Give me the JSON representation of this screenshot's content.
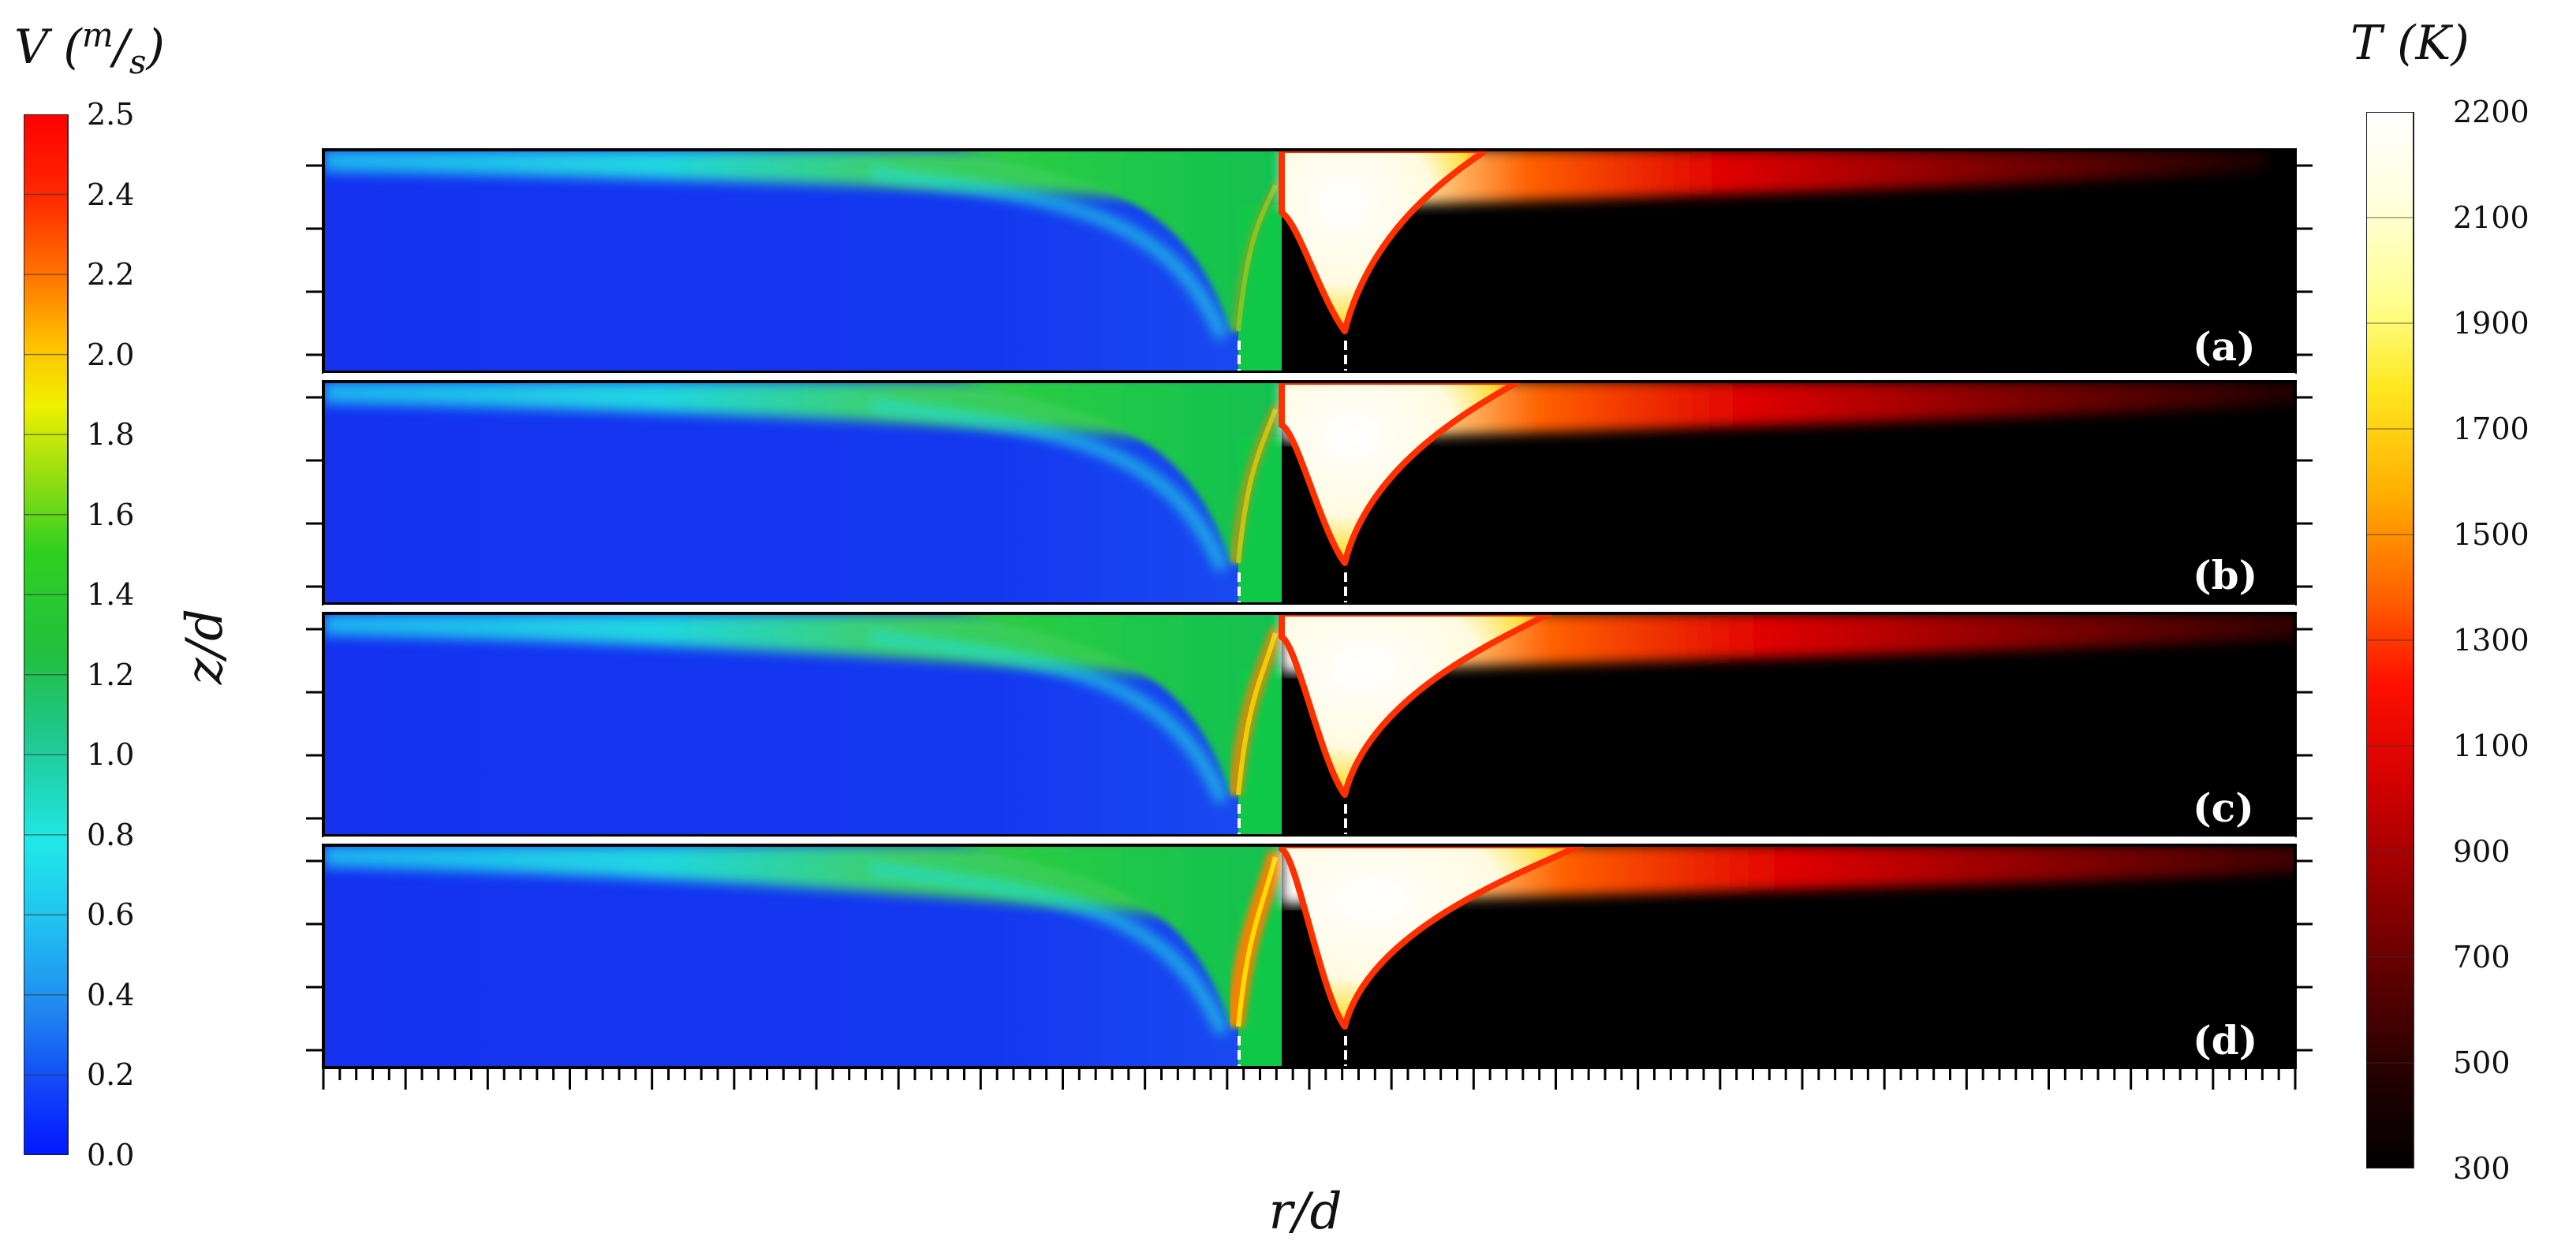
{
  "left_colorbar": {
    "var": "V",
    "unit_top": "m",
    "unit_bottom": "s",
    "ticks": [
      "2.5",
      "2.4",
      "2.2",
      "2.0",
      "1.8",
      "1.6",
      "1.4",
      "1.2",
      "1.0",
      "0.8",
      "0.6",
      "0.4",
      "0.2",
      "0.0"
    ],
    "colors": [
      "#ff0000",
      "#ff3000",
      "#ff7000",
      "#ffb000",
      "#ffe800",
      "#c8f000",
      "#80e000",
      "#30d030",
      "#20c040",
      "#20c880",
      "#20e0d8",
      "#20c8f0",
      "#2090f0",
      "#2050f0",
      "#0020ff"
    ]
  },
  "right_colorbar": {
    "title": "T (K)",
    "ticks": [
      "2200",
      "2100",
      "1900",
      "1700",
      "1500",
      "1300",
      "1100",
      "900",
      "700",
      "500",
      "300"
    ],
    "colors": [
      "#ffffff",
      "#ffffd0",
      "#ffff80",
      "#ffe020",
      "#ffb000",
      "#ff7000",
      "#ff2000",
      "#e00000",
      "#a00000",
      "#600000",
      "#300000",
      "#000000"
    ]
  },
  "axes": {
    "y_label": "z/d",
    "x_label": "r/d"
  },
  "panels": [
    {
      "label": "(a)"
    },
    {
      "label": "(b)"
    },
    {
      "label": "(c)"
    },
    {
      "label": "(d)"
    }
  ]
}
